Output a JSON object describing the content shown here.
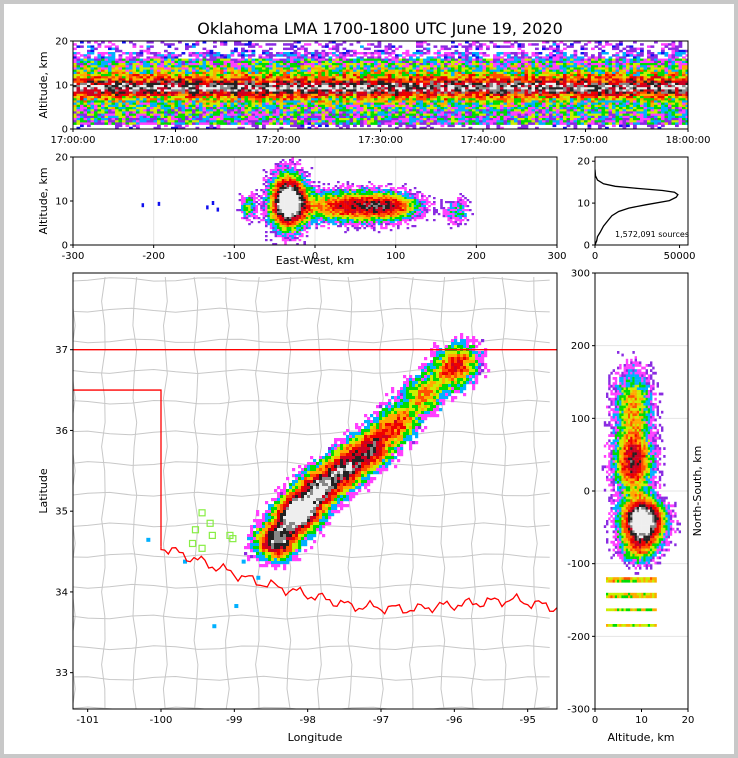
{
  "title": "Oklahoma LMA 1700-1800 UTC June 19, 2020",
  "colors": {
    "border": "#ff0000",
    "county": "#c8c8c8",
    "stations": "#88ee44",
    "frame": "#c8c8c8"
  },
  "chart_data": [
    {
      "id": "time-height",
      "type": "heatmap",
      "xlabel": "",
      "ylabel": "Altitude, km",
      "xlim": [
        "17:00:00",
        "18:00:00"
      ],
      "ylim": [
        0,
        20
      ],
      "xticks": [
        "17:00:00",
        "17:10:00",
        "17:20:00",
        "17:30:00",
        "17:40:00",
        "17:50:00",
        "18:00:00"
      ],
      "yticks": [
        "0",
        "10",
        "20"
      ],
      "density_band_km": [
        2,
        15
      ],
      "peak_band_km": [
        6,
        13
      ]
    },
    {
      "id": "ew-altitude",
      "type": "heatmap",
      "xlabel": "East-West, km",
      "ylabel": "Altitude, km",
      "xlim": [
        -300,
        300
      ],
      "ylim": [
        0,
        20
      ],
      "xticks": [
        "-300",
        "-200",
        "-100",
        "0",
        "100",
        "200",
        "300"
      ],
      "yticks": [
        "0",
        "10",
        "20"
      ],
      "core_center": {
        "x": -35,
        "z": 10
      }
    },
    {
      "id": "altitude-histogram",
      "type": "line",
      "xlabel": "",
      "ylabel": "",
      "xlim": [
        0,
        55000
      ],
      "ylim": [
        0,
        21
      ],
      "xticks": [
        "0",
        "50000"
      ],
      "yticks": [
        "0",
        "10",
        "20"
      ],
      "annotation": "1,572,091 sources",
      "x": [
        0,
        500,
        1000,
        1500,
        3000,
        5000,
        8000,
        10000,
        14000,
        20000,
        30000,
        44000,
        48000,
        49000,
        47000,
        40000,
        25000,
        12000,
        5000,
        1500,
        300,
        0
      ],
      "y": [
        0,
        0.5,
        1,
        2,
        3,
        4.5,
        6,
        7,
        8,
        8.8,
        9.6,
        10.6,
        11.4,
        12,
        12.6,
        13,
        13.5,
        14,
        14.6,
        15.5,
        16.5,
        18
      ]
    },
    {
      "id": "plan-view",
      "type": "heatmap",
      "xlabel": "Longitude",
      "ylabel": "Latitude",
      "xlim": [
        -101.2,
        -94.6
      ],
      "ylim": [
        32.55,
        37.95
      ],
      "xticks": [
        "-101",
        "-100",
        "-99",
        "-98",
        "-97",
        "-96",
        "-95"
      ],
      "yticks": [
        "33",
        "34",
        "35",
        "36",
        "37"
      ],
      "stations": [
        {
          "lon": -99.44,
          "lat": 34.98
        },
        {
          "lon": -99.33,
          "lat": 34.85
        },
        {
          "lon": -99.53,
          "lat": 34.77
        },
        {
          "lon": -99.3,
          "lat": 34.7
        },
        {
          "lon": -99.57,
          "lat": 34.6
        },
        {
          "lon": -99.44,
          "lat": 34.54
        },
        {
          "lon": -99.06,
          "lat": 34.7
        },
        {
          "lon": -99.02,
          "lat": 34.66
        }
      ],
      "storm_axis": [
        {
          "lon": -98.45,
          "lat": 34.65
        },
        {
          "lon": -98.15,
          "lat": 35.0
        },
        {
          "lon": -97.85,
          "lat": 35.3
        },
        {
          "lon": -97.5,
          "lat": 35.55
        },
        {
          "lon": -97.15,
          "lat": 35.8
        },
        {
          "lon": -96.8,
          "lat": 36.1
        },
        {
          "lon": -96.45,
          "lat": 36.45
        },
        {
          "lon": -96.1,
          "lat": 36.75
        },
        {
          "lon": -95.9,
          "lat": 36.9
        }
      ]
    },
    {
      "id": "ns-altitude",
      "type": "heatmap",
      "xlabel": "Altitude, km",
      "ylabel": "North-South, km",
      "xlim": [
        0,
        20
      ],
      "ylim": [
        -300,
        300
      ],
      "xticks": [
        "0",
        "10",
        "20"
      ],
      "yticks": [
        "300",
        "200",
        "100",
        "0",
        "-100",
        "-200",
        "-300"
      ],
      "core_center": {
        "z": 10,
        "y": -40
      }
    }
  ]
}
